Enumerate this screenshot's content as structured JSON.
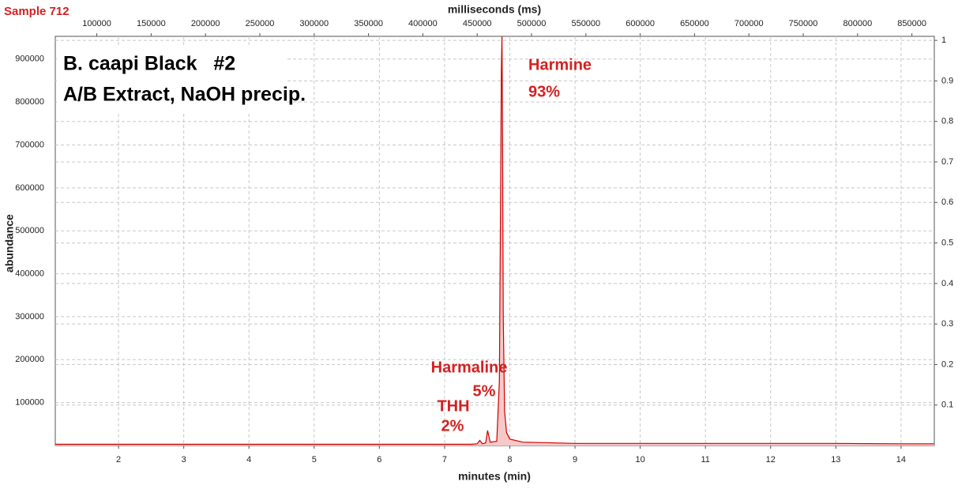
{
  "chart_data": {
    "type": "line",
    "sample": "Sample 712",
    "title": "B. caapi Black   #2",
    "subtitle": "A/B Extract, NaOH precip.",
    "x_label": "minutes (min)",
    "x2_label": "milliseconds (ms)",
    "y_label": "abundance",
    "annotations": [
      [
        "Harmine",
        "93%"
      ],
      [
        "Harmaline",
        "5%"
      ],
      [
        "THH",
        "2%"
      ]
    ],
    "xlim": [
      1.03,
      14.51
    ],
    "xticks": [
      2,
      3,
      4,
      5,
      6,
      7,
      8,
      9,
      10,
      11,
      12,
      13,
      14
    ],
    "x2lim": [
      61800,
      870600
    ],
    "x2ticks": [
      100000,
      150000,
      200000,
      250000,
      300000,
      350000,
      400000,
      450000,
      500000,
      550000,
      600000,
      650000,
      700000,
      750000,
      800000,
      850000
    ],
    "ylim": [
      0,
      953000
    ],
    "yticks": [
      100000,
      200000,
      300000,
      400000,
      500000,
      600000,
      700000,
      800000,
      900000
    ],
    "y2lim": [
      0,
      1.01
    ],
    "y2ticks": [
      0.1,
      0.2,
      0.3,
      0.4,
      0.5,
      0.6,
      0.7,
      0.8,
      0.9,
      1
    ],
    "grid": true,
    "series": [
      {
        "color": "#cc0000",
        "fill": "#f8c8c8",
        "x": [
          1.03,
          2,
          3,
          4,
          5,
          6,
          7,
          7.4,
          7.5,
          7.54,
          7.58,
          7.63,
          7.66,
          7.7,
          7.8,
          7.84,
          7.86,
          7.87,
          7.88,
          7.89,
          7.9,
          7.92,
          7.95,
          8.0,
          8.2,
          9,
          10,
          11,
          12,
          13,
          14,
          14.51
        ],
        "values": [
          3000,
          3000,
          3000,
          3000,
          3000,
          3000,
          3000,
          3000,
          4000,
          12000,
          4000,
          6000,
          35000,
          8000,
          10000,
          150000,
          600000,
          870000,
          953000,
          700000,
          300000,
          80000,
          30000,
          15000,
          8000,
          5000,
          5000,
          5000,
          5000,
          5000,
          4000,
          4000
        ]
      }
    ]
  }
}
